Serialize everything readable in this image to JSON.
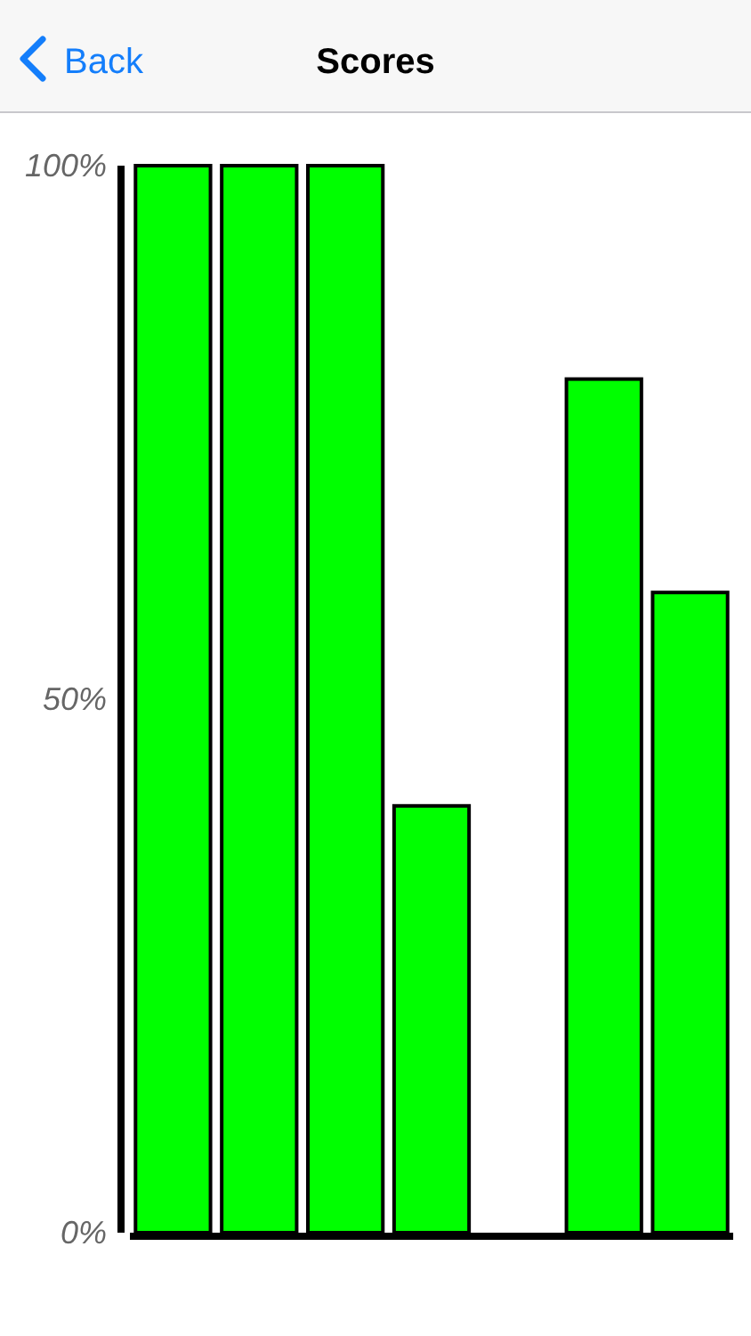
{
  "chart_data": {
    "type": "bar",
    "title": "Scores",
    "annotations": [
      "Back"
    ],
    "categories": [
      null,
      null,
      null,
      null,
      null,
      null,
      null
    ],
    "values": [
      100,
      100,
      100,
      40,
      0,
      80,
      60
    ],
    "color": "#00ff00",
    "ylim": [
      0,
      100
    ],
    "yticks": [
      {
        "value": 0,
        "label": "0%"
      },
      {
        "value": 50,
        "label": "50%"
      },
      {
        "value": 100,
        "label": "100%"
      }
    ],
    "grid": false
  }
}
